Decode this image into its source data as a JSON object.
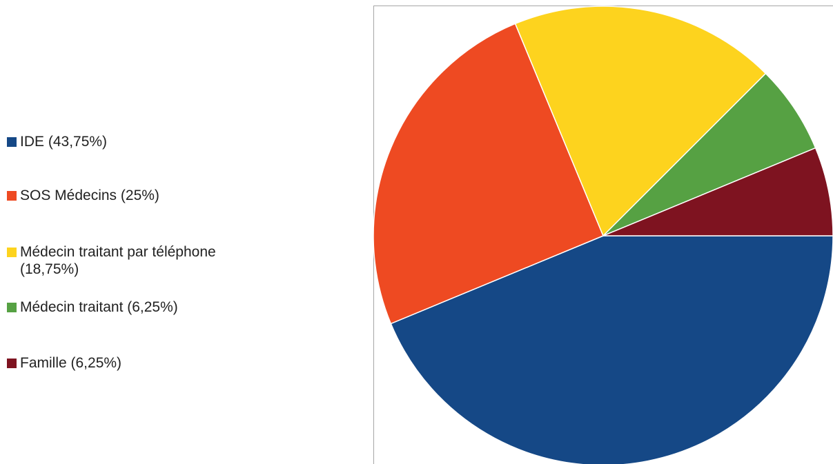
{
  "chart_data": {
    "type": "pie",
    "categories": [
      "IDE",
      "SOS Médecins",
      "Médecin traitant par téléphone",
      "Médecin traitant",
      "Famille"
    ],
    "values": [
      43.75,
      25,
      18.75,
      6.25,
      6.25
    ],
    "colors": [
      "#154886",
      "#ee4a22",
      "#fdd31e",
      "#56a143",
      "#7e1320"
    ],
    "legend": [
      "IDE (43,75%)",
      "SOS Médecins (25%)",
      "Médecin traitant par téléphone (18,75%)",
      "Médecin traitant (6,25%)",
      "Famille (6,25%)"
    ],
    "legend_position": "left",
    "start_angle_deg": 0,
    "direction": "clockwise"
  }
}
